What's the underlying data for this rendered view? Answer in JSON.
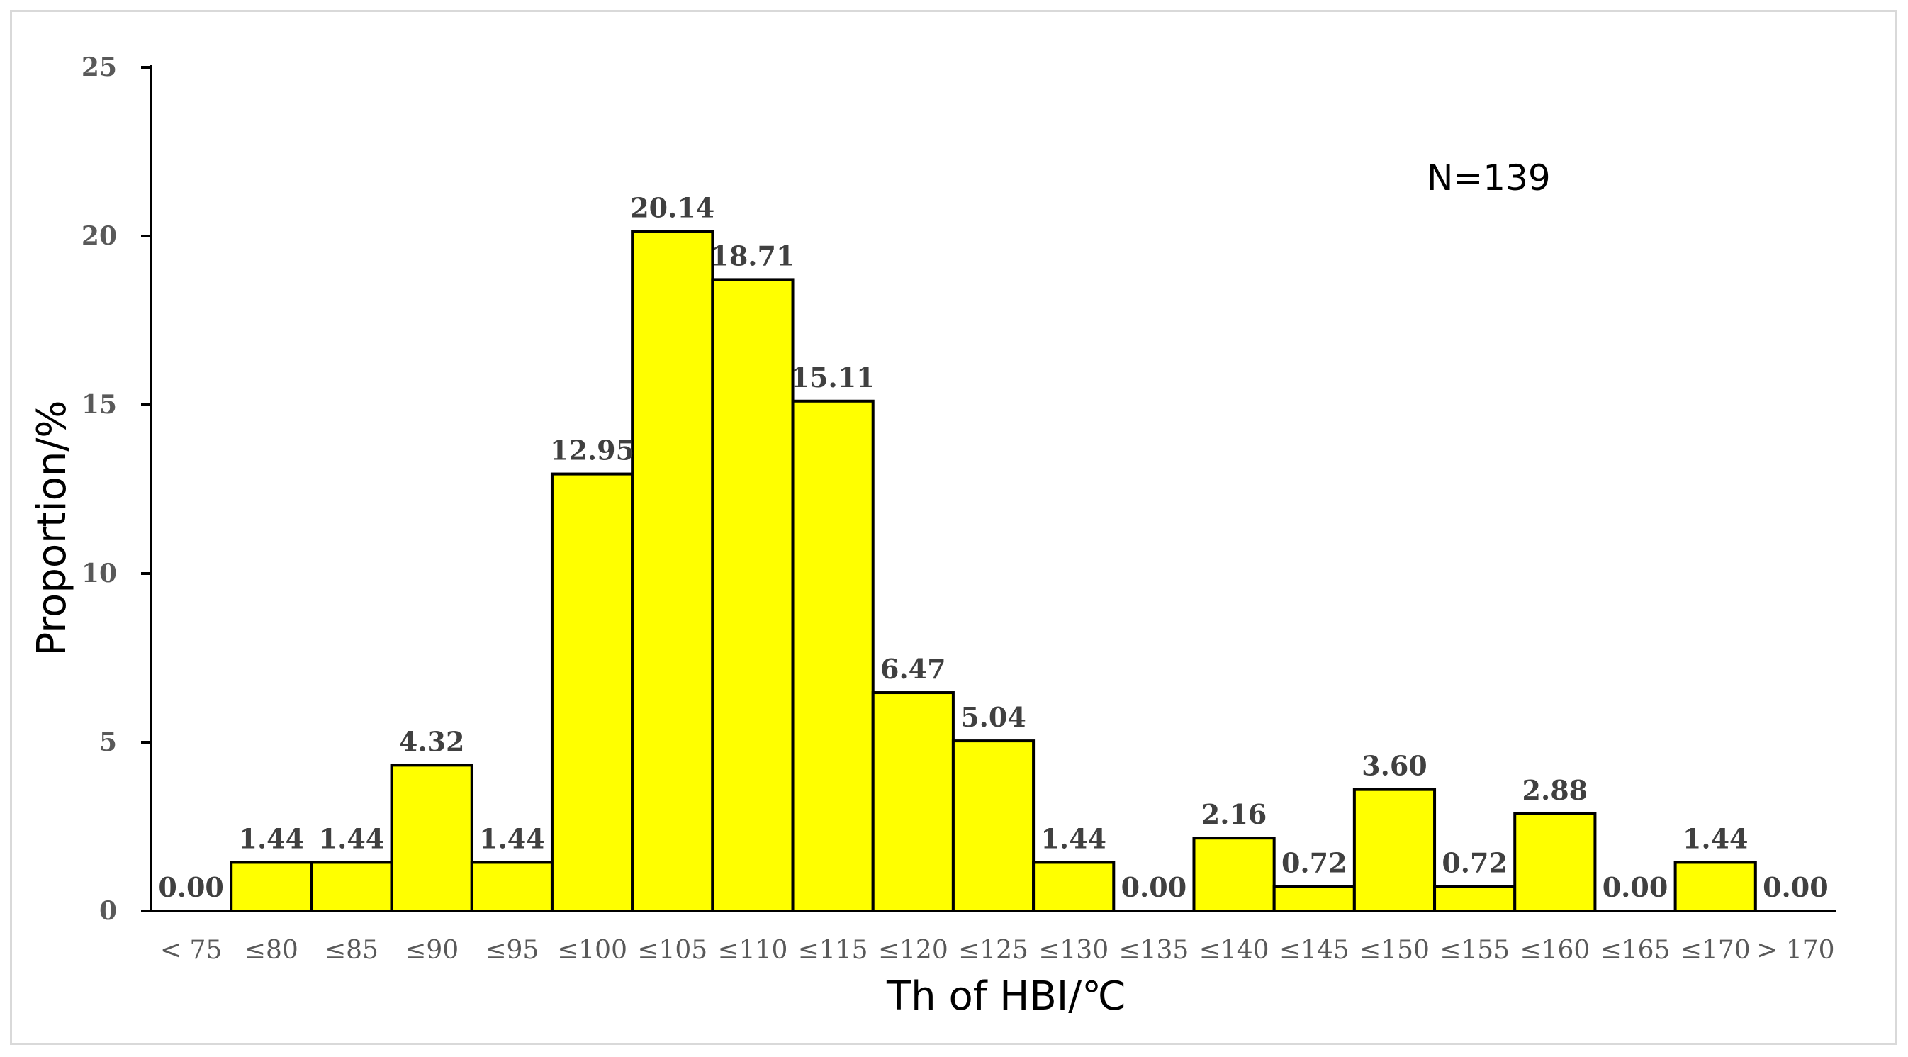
{
  "chart_data": {
    "type": "bar",
    "categories": [
      "< 75",
      "≤80",
      "≤85",
      "≤90",
      "≤95",
      "≤100",
      "≤105",
      "≤110",
      "≤115",
      "≤120",
      "≤125",
      "≤130",
      "≤135",
      "≤140",
      "≤145",
      "≤150",
      "≤155",
      "≤160",
      "≤165",
      "≤170",
      "> 170"
    ],
    "values": [
      0.0,
      1.44,
      1.44,
      4.32,
      1.44,
      12.95,
      20.14,
      18.71,
      15.11,
      6.47,
      5.04,
      1.44,
      0.0,
      2.16,
      0.72,
      3.6,
      0.72,
      2.88,
      0.0,
      1.44,
      0.0
    ],
    "data_labels": [
      "0.00",
      "1.44",
      "1.44",
      "4.32",
      "1.44",
      "12.95",
      "20.14",
      "18.71",
      "15.11",
      "6.47",
      "5.04",
      "1.44",
      "0.00",
      "2.16",
      "0.72",
      "3.60",
      "0.72",
      "2.88",
      "0.00",
      "1.44",
      "0.00"
    ],
    "yticks": [
      "0",
      "5",
      "10",
      "15",
      "20",
      "25"
    ],
    "ylim": [
      0,
      25
    ],
    "xlabel": "Th of HBI/℃",
    "ylabel": "Proportion/%",
    "annotation": "N=139",
    "grid": false,
    "bar_color": "#ffff00",
    "bar_edge_color": "#000000"
  }
}
